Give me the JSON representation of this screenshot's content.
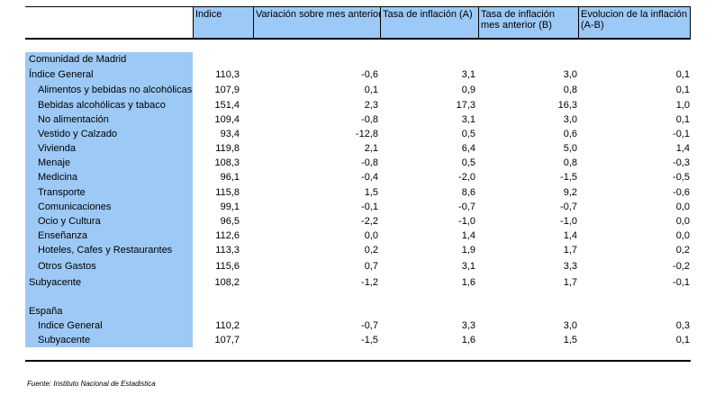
{
  "headers": [
    "Indice",
    "Variación sobre mes anterior",
    "Tasa de inflación (A)",
    "Tasa de inflación mes anterior (B)",
    "Evolucion de la inflación (A-B)"
  ],
  "madrid": {
    "title": "Comunidad de Madrid",
    "rows": [
      {
        "label": "Índice General",
        "indent": false,
        "v": [
          "110,3",
          "-0,6",
          "3,1",
          "3,0",
          "0,1"
        ]
      },
      {
        "label": "Alimentos y bebidas no alcohólicas",
        "indent": true,
        "v": [
          "107,9",
          "0,1",
          "0,9",
          "0,8",
          "0,1"
        ]
      },
      {
        "label": "Bebidas alcohólicas y tabaco",
        "indent": true,
        "v": [
          "151,4",
          "2,3",
          "17,3",
          "16,3",
          "1,0"
        ]
      },
      {
        "label": "No alimentación",
        "indent": true,
        "v": [
          "109,4",
          "-0,8",
          "3,1",
          "3,0",
          "0,1"
        ]
      },
      {
        "label": "Vestido y Calzado",
        "indent": true,
        "v": [
          "93,4",
          "-12,8",
          "0,5",
          "0,6",
          "-0,1"
        ]
      },
      {
        "label": "Vivienda",
        "indent": true,
        "v": [
          "119,8",
          "2,1",
          "6,4",
          "5,0",
          "1,4"
        ]
      },
      {
        "label": "Menaje",
        "indent": true,
        "v": [
          "108,3",
          "-0,8",
          "0,5",
          "0,8",
          "-0,3"
        ]
      },
      {
        "label": "Medicina",
        "indent": true,
        "v": [
          "96,1",
          "-0,4",
          "-2,0",
          "-1,5",
          "-0,5"
        ]
      },
      {
        "label": "Transporte",
        "indent": true,
        "v": [
          "115,8",
          "1,5",
          "8,6",
          "9,2",
          "-0,6"
        ]
      },
      {
        "label": "Comunicaciones",
        "indent": true,
        "v": [
          "99,1",
          "-0,1",
          "-0,7",
          "-0,7",
          "0,0"
        ]
      },
      {
        "label": "Ocio y Cultura",
        "indent": true,
        "v": [
          "96,5",
          "-2,2",
          "-1,0",
          "-1,0",
          "0,0"
        ]
      },
      {
        "label": "Enseñanza",
        "indent": true,
        "v": [
          "112,6",
          "0,0",
          "1,4",
          "1,4",
          "0,0"
        ]
      },
      {
        "label": "Hoteles, Cafes y Restaurantes",
        "indent": true,
        "v": [
          "113,3",
          "0,2",
          "1,9",
          "1,7",
          "0,2"
        ]
      },
      {
        "label": "Otros Gastos",
        "indent": true,
        "v": [
          "115,6",
          "0,7",
          "3,1",
          "3,3",
          "-0,2"
        ]
      },
      {
        "label": "Subyacente",
        "indent": false,
        "v": [
          "108,2",
          "-1,2",
          "1,6",
          "1,7",
          "-0,1"
        ]
      }
    ]
  },
  "espana": {
    "title": "España",
    "rows": [
      {
        "label": "Indice General",
        "indent": true,
        "v": [
          "110,2",
          "-0,7",
          "3,3",
          "3,0",
          "0,3"
        ]
      },
      {
        "label": "Subyacente",
        "indent": true,
        "v": [
          "107,7",
          "-1,5",
          "1,6",
          "1,5",
          "0,1"
        ]
      }
    ]
  },
  "source": "Fuente: Instituto Nacional de Estadistica"
}
